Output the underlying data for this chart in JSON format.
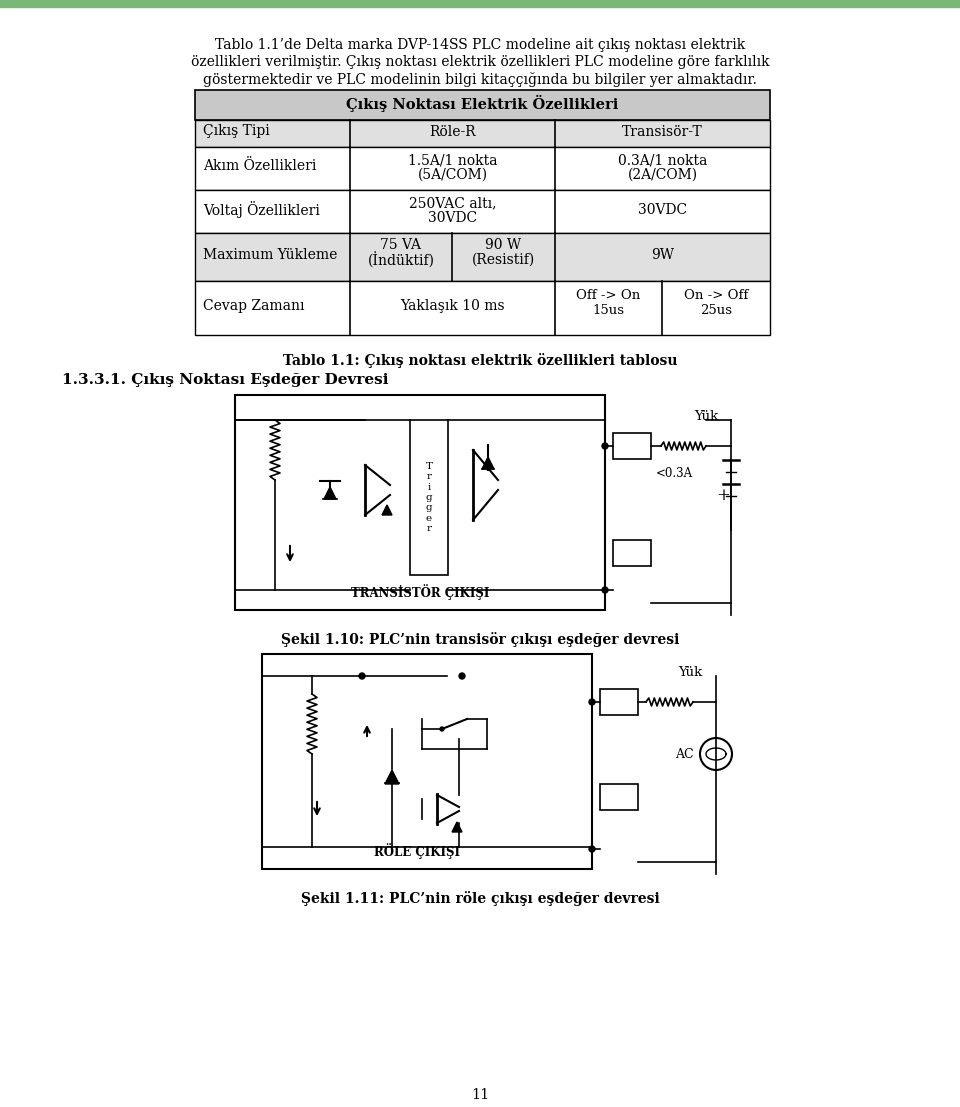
{
  "page_bg": "#ffffff",
  "green_bar_color": "#6aaa6a",
  "paragraph1": "Tablo 1.1’de Delta marka DVP-14SS PLC modeline ait çıkış noktası elektrik özellikleri verilmiştir. Çıkış noktası elektrik özellikleri PLC modeline göre farklılık göstermektedir ve PLC modelinin bilgi kitaççığında bu bilgiler yer almaktadır.",
  "table_title": "Çıkış Noktası Elektrik Özellikleri",
  "col0_header": "Çıkış Tipi",
  "col1_header": "Röle-R",
  "col2_header": "Transisör-T",
  "row2_col0": "Akım Özellikleri",
  "row2_col1": "1.5A/1 nokta\n(5A/COM)",
  "row2_col2": "0.3A/1 nokta\n(2A/COM)",
  "row3_col0": "Voltaj Özellikleri",
  "row3_col1": "250VAC altı,\n30VDC",
  "row3_col2": "30VDC",
  "row4_col0": "Maximum Yükleme",
  "row4_col1a": "75 VA\n(İndüktif)",
  "row4_col1b": "90 W\n(Resistif)",
  "row4_col2": "9W",
  "row5_col0": "Cevap Zamanı",
  "row5_col1": "Yaklaşık 10 ms",
  "row5_col2a": "Off -> On\n15us",
  "row5_col2b": "On -> Off\n25us",
  "table_caption": "Tablo 1.1: Çıkış noktası elektrik özellikleri tablosu",
  "section_title": "1.3.3.1. Çıkış Noktası Eşdeğer Devresi",
  "fig1_caption": "Şekil 1.10: PLC’nin transisör çıkışı eşdeğer devresi",
  "fig2_caption": "Şekil 1.11: PLC’nin röle çıkışı eşdeğer devresi",
  "page_number": "11"
}
